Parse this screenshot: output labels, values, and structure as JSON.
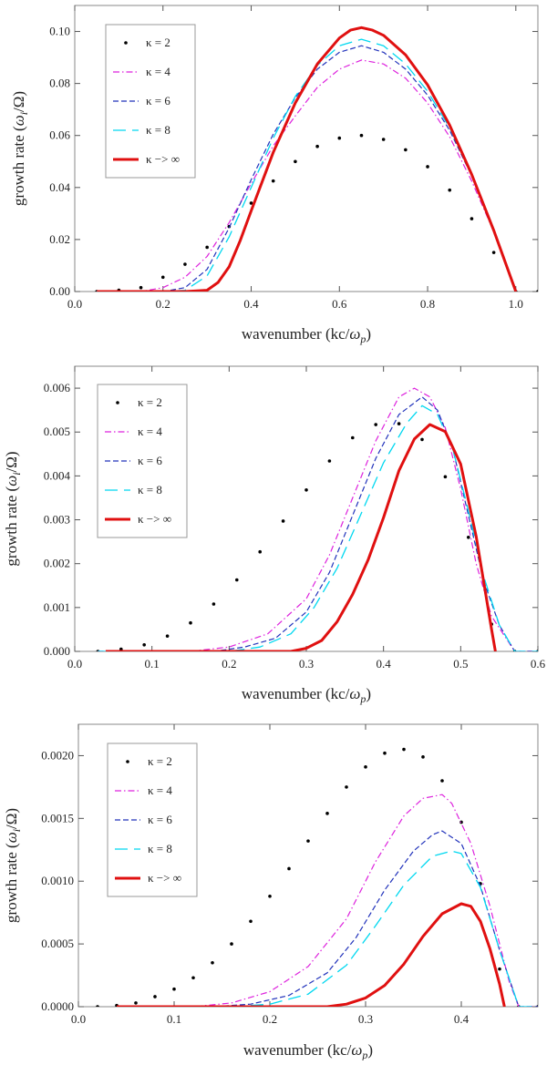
{
  "figure": {
    "description_labels": "three stacked growth-rate plots"
  },
  "colors": {
    "k2": "#000000",
    "k4": "#dd22dd",
    "k6": "#2233bb",
    "k8": "#00d8f0",
    "kinf": "#e01010",
    "frame": "#888888"
  },
  "chart_data": [
    {
      "type": "line",
      "xlabel": "wavenumber (kc/ωp)",
      "xlabel_parts": [
        "wavenumber (kc/",
        "ω",
        "p",
        ")"
      ],
      "ylabel": "growth rate (ωi/Ω)",
      "ylabel_parts": [
        "growth rate (",
        "ω",
        "i",
        "/Ω)"
      ],
      "xlim": [
        0.0,
        1.05
      ],
      "ylim": [
        0.0,
        0.11
      ],
      "xticks": [
        0.0,
        0.2,
        0.4,
        0.6,
        0.8,
        1.0
      ],
      "xtick_labels": [
        "0.0",
        "0.2",
        "0.4",
        "0.6",
        "0.8",
        "1.0"
      ],
      "yticks": [
        0.0,
        0.02,
        0.04,
        0.06,
        0.08,
        0.1
      ],
      "ytick_labels": [
        "0.00",
        "0.02",
        "0.04",
        "0.06",
        "0.08",
        "0.10"
      ],
      "legend_placement": "top-left",
      "series": [
        {
          "name": "κ = 2",
          "style": "dots",
          "color_key": "k2",
          "x": [
            0.05,
            0.1,
            0.15,
            0.2,
            0.25,
            0.3,
            0.35,
            0.4,
            0.45,
            0.5,
            0.55,
            0.6,
            0.65,
            0.7,
            0.75,
            0.8,
            0.85,
            0.9,
            0.95,
            1.0,
            1.05
          ],
          "y": [
            0.0,
            0.0005,
            0.0015,
            0.0055,
            0.0105,
            0.017,
            0.025,
            0.034,
            0.0425,
            0.05,
            0.0558,
            0.059,
            0.06,
            0.0585,
            0.0545,
            0.048,
            0.039,
            0.028,
            0.015,
            0.0,
            0.0
          ]
        },
        {
          "name": "κ = 4",
          "style": "dashdot",
          "color_key": "k4",
          "x": [
            0.05,
            0.15,
            0.2,
            0.25,
            0.3,
            0.35,
            0.4,
            0.45,
            0.5,
            0.55,
            0.6,
            0.65,
            0.7,
            0.75,
            0.8,
            0.85,
            0.9,
            0.95,
            1.0
          ],
          "y": [
            0.0,
            0.0,
            0.0015,
            0.0055,
            0.0135,
            0.0265,
            0.0415,
            0.056,
            0.0675,
            0.0785,
            0.0855,
            0.089,
            0.0875,
            0.082,
            0.0725,
            0.0595,
            0.0425,
            0.023,
            0.0
          ]
        },
        {
          "name": "κ = 6",
          "style": "dashed",
          "color_key": "k6",
          "x": [
            0.05,
            0.2,
            0.25,
            0.3,
            0.35,
            0.4,
            0.45,
            0.5,
            0.55,
            0.6,
            0.65,
            0.7,
            0.75,
            0.8,
            0.85,
            0.9,
            0.95,
            1.0
          ],
          "y": [
            0.0,
            0.0,
            0.0015,
            0.0085,
            0.0245,
            0.043,
            0.0605,
            0.0745,
            0.0855,
            0.092,
            0.0945,
            0.092,
            0.0855,
            0.0755,
            0.062,
            0.0445,
            0.0235,
            0.0
          ]
        },
        {
          "name": "κ = 8",
          "style": "longdash",
          "color_key": "k8",
          "x": [
            0.05,
            0.2,
            0.25,
            0.3,
            0.35,
            0.4,
            0.45,
            0.5,
            0.55,
            0.6,
            0.65,
            0.7,
            0.75,
            0.8,
            0.85,
            0.9,
            0.95,
            1.0
          ],
          "y": [
            0.0,
            0.0,
            0.0005,
            0.006,
            0.021,
            0.04,
            0.059,
            0.075,
            0.087,
            0.0945,
            0.097,
            0.0945,
            0.0875,
            0.077,
            0.063,
            0.045,
            0.0235,
            0.0
          ]
        },
        {
          "name": "κ −> ∞",
          "style": "thick",
          "color_key": "kinf",
          "x": [
            0.05,
            0.25,
            0.3,
            0.325,
            0.35,
            0.375,
            0.4,
            0.45,
            0.5,
            0.55,
            0.6,
            0.625,
            0.65,
            0.675,
            0.7,
            0.75,
            0.8,
            0.85,
            0.9,
            0.95,
            1.0
          ],
          "y": [
            0.0,
            0.0,
            0.0005,
            0.0035,
            0.0095,
            0.0195,
            0.031,
            0.0535,
            0.0725,
            0.0875,
            0.0975,
            0.1005,
            0.1015,
            0.1005,
            0.0985,
            0.091,
            0.0795,
            0.064,
            0.045,
            0.0235,
            0.0
          ]
        }
      ]
    },
    {
      "type": "line",
      "xlabel": "wavenumber (kc/ωp)",
      "xlabel_parts": [
        "wavenumber (kc/",
        "ω",
        "p",
        ")"
      ],
      "ylabel": "growth rate (ωi/Ω)",
      "ylabel_parts": [
        "growth rate (",
        "ω",
        "i",
        "/Ω)"
      ],
      "xlim": [
        0.0,
        0.6
      ],
      "ylim": [
        0.0,
        0.0065
      ],
      "xticks": [
        0.0,
        0.1,
        0.2,
        0.3,
        0.4,
        0.5,
        0.6
      ],
      "xtick_labels": [
        "0.0",
        "0.1",
        "0.2",
        "0.3",
        "0.4",
        "0.5",
        "0.6"
      ],
      "yticks": [
        0.0,
        0.001,
        0.002,
        0.003,
        0.004,
        0.005,
        0.006
      ],
      "ytick_labels": [
        "0.000",
        "0.001",
        "0.002",
        "0.003",
        "0.004",
        "0.005",
        "0.006"
      ],
      "legend_placement": "top-left",
      "series": [
        {
          "name": "κ = 2",
          "style": "dots",
          "color_key": "k2",
          "x": [
            0.03,
            0.06,
            0.09,
            0.12,
            0.15,
            0.18,
            0.21,
            0.24,
            0.27,
            0.3,
            0.33,
            0.36,
            0.39,
            0.42,
            0.45,
            0.48,
            0.51,
            0.54,
            0.57,
            0.6
          ],
          "y": [
            0.0,
            5e-05,
            0.00015,
            0.00035,
            0.00065,
            0.00108,
            0.00163,
            0.00227,
            0.00297,
            0.00368,
            0.00434,
            0.00487,
            0.00517,
            0.00519,
            0.00483,
            0.00398,
            0.0026,
            0.00062,
            0.0,
            0.0
          ]
        },
        {
          "name": "κ = 4",
          "style": "dashdot",
          "color_key": "k4",
          "x": [
            0.03,
            0.15,
            0.2,
            0.25,
            0.3,
            0.33,
            0.36,
            0.39,
            0.42,
            0.44,
            0.46,
            0.48,
            0.5,
            0.52,
            0.54,
            0.57,
            0.6
          ],
          "y": [
            0.0,
            0.0,
            0.0001,
            0.0004,
            0.0012,
            0.0022,
            0.0035,
            0.0048,
            0.0058,
            0.006,
            0.0058,
            0.0051,
            0.0037,
            0.002,
            0.0008,
            0.0,
            0.0
          ]
        },
        {
          "name": "κ = 6",
          "style": "dashed",
          "color_key": "k6",
          "x": [
            0.03,
            0.18,
            0.22,
            0.26,
            0.3,
            0.33,
            0.36,
            0.39,
            0.42,
            0.45,
            0.47,
            0.49,
            0.51,
            0.53,
            0.55,
            0.57,
            0.6
          ],
          "y": [
            0.0,
            0.0,
            0.0001,
            0.0003,
            0.0009,
            0.0018,
            0.0031,
            0.0044,
            0.0054,
            0.0058,
            0.0055,
            0.0046,
            0.0031,
            0.0016,
            0.0006,
            0.0,
            0.0
          ]
        },
        {
          "name": "κ = 8",
          "style": "longdash",
          "color_key": "k8",
          "x": [
            0.03,
            0.2,
            0.24,
            0.28,
            0.31,
            0.34,
            0.37,
            0.4,
            0.43,
            0.45,
            0.47,
            0.49,
            0.51,
            0.53,
            0.55,
            0.57,
            0.6
          ],
          "y": [
            0.0,
            0.0,
            0.0001,
            0.0004,
            0.001,
            0.0019,
            0.0031,
            0.0043,
            0.0052,
            0.0056,
            0.0054,
            0.0046,
            0.0032,
            0.0017,
            0.0006,
            0.0,
            0.0
          ]
        },
        {
          "name": "κ −> ∞",
          "style": "thick",
          "color_key": "kinf",
          "x": [
            0.04,
            0.28,
            0.3,
            0.32,
            0.34,
            0.36,
            0.38,
            0.4,
            0.42,
            0.44,
            0.46,
            0.48,
            0.5,
            0.52,
            0.54,
            0.545
          ],
          "y": [
            0.0,
            0.0,
            7e-05,
            0.00025,
            0.00068,
            0.0013,
            0.00208,
            0.00305,
            0.00412,
            0.00484,
            0.00517,
            0.00501,
            0.00427,
            0.00262,
            0.0005,
            0.0
          ]
        }
      ]
    },
    {
      "type": "line",
      "xlabel": "wavenumber (kc/ωp)",
      "xlabel_parts": [
        "wavenumber (kc/",
        "ω",
        "p",
        ")"
      ],
      "ylabel": "growth rate (ωi/Ω)",
      "ylabel_parts": [
        "growth rate (",
        "ω",
        "i",
        "/Ω)"
      ],
      "xlim": [
        0.0,
        0.48
      ],
      "ylim": [
        0.0,
        0.00225
      ],
      "xticks": [
        0.0,
        0.1,
        0.2,
        0.3,
        0.4
      ],
      "xtick_labels": [
        "0.0",
        "0.1",
        "0.2",
        "0.3",
        "0.4"
      ],
      "yticks": [
        0.0,
        0.0005,
        0.001,
        0.0015,
        0.002
      ],
      "ytick_labels": [
        "0.0000",
        "0.0005",
        "0.0010",
        "0.0015",
        "0.0020"
      ],
      "legend_placement": "top-left",
      "series": [
        {
          "name": "κ = 2",
          "style": "dots",
          "color_key": "k2",
          "x": [
            0.02,
            0.04,
            0.06,
            0.08,
            0.1,
            0.12,
            0.14,
            0.16,
            0.18,
            0.2,
            0.22,
            0.24,
            0.26,
            0.28,
            0.3,
            0.32,
            0.34,
            0.36,
            0.38,
            0.4,
            0.42,
            0.44,
            0.46,
            0.48
          ],
          "y": [
            0.0,
            1e-05,
            3e-05,
            8e-05,
            0.00014,
            0.00023,
            0.00035,
            0.0005,
            0.00068,
            0.00088,
            0.0011,
            0.00132,
            0.00154,
            0.00175,
            0.00191,
            0.00202,
            0.00205,
            0.00199,
            0.0018,
            0.00147,
            0.00098,
            0.0003,
            0.0,
            0.0
          ]
        },
        {
          "name": "κ = 4",
          "style": "dashdot",
          "color_key": "k4",
          "x": [
            0.04,
            0.12,
            0.16,
            0.2,
            0.24,
            0.28,
            0.31,
            0.34,
            0.36,
            0.38,
            0.39,
            0.41,
            0.43,
            0.45,
            0.46,
            0.48
          ],
          "y": [
            0.0,
            0.0,
            3e-05,
            0.00012,
            0.00032,
            0.0007,
            0.00115,
            0.00152,
            0.00166,
            0.00169,
            0.00162,
            0.0013,
            0.0008,
            0.0002,
            0.0,
            0.0
          ]
        },
        {
          "name": "κ = 6",
          "style": "dashed",
          "color_key": "k6",
          "x": [
            0.04,
            0.14,
            0.18,
            0.22,
            0.26,
            0.29,
            0.32,
            0.35,
            0.37,
            0.38,
            0.4,
            0.42,
            0.44,
            0.46,
            0.48
          ],
          "y": [
            0.0,
            0.0,
            2e-05,
            9e-05,
            0.00027,
            0.00055,
            0.00093,
            0.00124,
            0.00137,
            0.0014,
            0.0013,
            0.00096,
            0.00045,
            0.0,
            0.0
          ]
        },
        {
          "name": "κ = 8",
          "style": "longdash",
          "color_key": "k8",
          "x": [
            0.04,
            0.16,
            0.2,
            0.24,
            0.28,
            0.31,
            0.34,
            0.37,
            0.39,
            0.4,
            0.42,
            0.44,
            0.46,
            0.48
          ],
          "y": [
            0.0,
            0.0,
            2e-05,
            0.0001,
            0.00033,
            0.00064,
            0.00097,
            0.0012,
            0.00124,
            0.00122,
            0.00095,
            0.00045,
            0.0,
            0.0
          ]
        },
        {
          "name": "κ −> ∞",
          "style": "thick",
          "color_key": "kinf",
          "x": [
            0.04,
            0.26,
            0.28,
            0.3,
            0.32,
            0.34,
            0.36,
            0.38,
            0.4,
            0.41,
            0.42,
            0.43,
            0.44,
            0.445
          ],
          "y": [
            0.0,
            0.0,
            2e-05,
            7e-05,
            0.00017,
            0.00034,
            0.00056,
            0.00074,
            0.00082,
            0.0008,
            0.00068,
            0.00046,
            0.00018,
            0.0
          ]
        }
      ]
    }
  ]
}
